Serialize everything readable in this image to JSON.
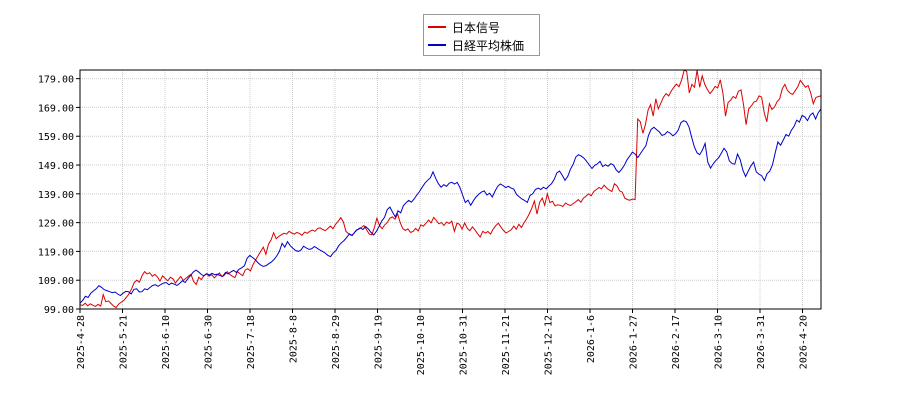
{
  "chart_data": {
    "type": "line",
    "y_ticks": [
      "99.00",
      "109.00",
      "119.00",
      "129.00",
      "139.00",
      "149.00",
      "159.00",
      "169.00",
      "179.00"
    ],
    "ylim": [
      99,
      182
    ],
    "x_ticks": [
      "2025-4-28",
      "2025-5-21",
      "2025-6-10",
      "2025-6-30",
      "2025-7-18",
      "2025-8-8",
      "2025-8-29",
      "2025-9-19",
      "2025-10-10",
      "2025-10-31",
      "2025-11-21",
      "2025-12-12",
      "2026-1-6",
      "2026-1-27",
      "2026-2-17",
      "2026-3-10",
      "2026-3-31",
      "2026-4-20"
    ],
    "grid": true,
    "legend_position": "top-center",
    "series": [
      {
        "name": "日本信号",
        "color": "#dd0000",
        "values": [
          100.5,
          100.2,
          101.0,
          100.1,
          100.8,
          100.3,
          99.9,
          100.6,
          100.0,
          104.0,
          101.5,
          101.8,
          100.9,
          100.0,
          99.5,
          100.7,
          101.4,
          102.0,
          103.1,
          104.3,
          106.0,
          108.2,
          109.0,
          108.3,
          110.5,
          112.0,
          111.2,
          111.6,
          110.4,
          111.0,
          110.1,
          108.7,
          110.5,
          109.6,
          108.8,
          110.0,
          109.5,
          108.0,
          109.2,
          110.3,
          108.9,
          109.7,
          110.4,
          111.0,
          108.6,
          107.5,
          110.0,
          109.2,
          110.6,
          111.2,
          110.4,
          110.9,
          109.8,
          110.7,
          111.5,
          110.2,
          110.8,
          112.0,
          111.0,
          110.4,
          109.9,
          112.0,
          111.2,
          110.6,
          112.5,
          113.0,
          112.2,
          114.4,
          116.0,
          117.5,
          119.0,
          120.5,
          118.0,
          121.5,
          123.0,
          125.5,
          123.4,
          124.2,
          124.8,
          125.3,
          125.0,
          126.0,
          125.4,
          125.0,
          125.6,
          125.2,
          124.6,
          125.7,
          125.3,
          126.0,
          126.4,
          126.0,
          126.9,
          127.2,
          126.6,
          126.2,
          127.0,
          127.8,
          126.9,
          128.4,
          129.5,
          130.7,
          129.2,
          126.0,
          125.2,
          124.6,
          125.1,
          126.4,
          126.7,
          127.3,
          128.0,
          126.5,
          125.0,
          124.8,
          127.2,
          130.5,
          128.0,
          126.9,
          128.2,
          129.0,
          130.5,
          131.0,
          130.2,
          132.0,
          129.0,
          127.0,
          126.3,
          126.8,
          125.6,
          125.9,
          127.0,
          126.1,
          128.2,
          127.8,
          128.8,
          129.9,
          128.9,
          130.8,
          129.7,
          128.6,
          129.0,
          128.0,
          129.2,
          128.7,
          129.5,
          126.0,
          128.8,
          128.4,
          126.7,
          128.9,
          127.0,
          126.2,
          127.5,
          126.4,
          125.1,
          124.0,
          126.0,
          125.4,
          125.9,
          125.0,
          126.7,
          127.9,
          128.8,
          127.5,
          126.3,
          125.4,
          125.9,
          126.5,
          127.8,
          126.7,
          128.4,
          127.3,
          129.0,
          130.4,
          132.0,
          134.0,
          136.5,
          132.0,
          136.0,
          137.5,
          135.0,
          139.0,
          136.0,
          136.4,
          134.8,
          135.2,
          135.0,
          134.6,
          135.8,
          135.3,
          134.9,
          135.6,
          136.2,
          137.0,
          136.1,
          137.5,
          138.2,
          139.0,
          138.3,
          139.8,
          140.5,
          141.2,
          140.7,
          142.0,
          141.0,
          140.3,
          139.8,
          142.5,
          141.8,
          140.0,
          139.6,
          137.5,
          137.0,
          136.8,
          137.2,
          137.0,
          165.0,
          164.0,
          160.0,
          163.0,
          168.0,
          170.0,
          166.0,
          172.0,
          168.5,
          170.5,
          172.6,
          173.8,
          173.0,
          174.7,
          176.0,
          177.1,
          176.2,
          178.5,
          182.0,
          181.5,
          174.0,
          177.0,
          176.0,
          182.0,
          176.0,
          180.0,
          177.0,
          175.2,
          173.8,
          174.9,
          176.3,
          175.8,
          178.6,
          174.0,
          166.0,
          170.7,
          171.5,
          172.8,
          172.2,
          174.6,
          175.1,
          170.0,
          163.0,
          168.5,
          169.5,
          170.9,
          171.2,
          173.0,
          172.6,
          167.2,
          164.0,
          170.3,
          168.3,
          169.1,
          171.0,
          172.0,
          175.5,
          177.0,
          174.9,
          174.0,
          173.5,
          174.8,
          176.2,
          178.4,
          177.2,
          176.0,
          176.6,
          174.0,
          170.3,
          172.4,
          172.8,
          173.0
        ]
      },
      {
        "name": "日経平均株価",
        "color": "#0000cc",
        "values": [
          101.0,
          102.0,
          103.4,
          103.0,
          104.5,
          105.3,
          106.0,
          107.1,
          106.5,
          105.7,
          105.4,
          105.0,
          104.7,
          104.9,
          104.2,
          103.7,
          104.5,
          105.1,
          105.0,
          104.2,
          105.8,
          106.0,
          104.9,
          105.0,
          106.0,
          105.7,
          106.5,
          107.2,
          107.4,
          106.9,
          107.5,
          108.0,
          108.2,
          107.4,
          108.0,
          107.6,
          107.2,
          107.9,
          108.8,
          108.2,
          109.5,
          110.6,
          111.8,
          112.5,
          111.9,
          111.0,
          110.5,
          111.3,
          110.8,
          111.4,
          110.9,
          111.1,
          110.6,
          110.4,
          111.7,
          111.2,
          111.9,
          112.4,
          111.7,
          112.8,
          113.3,
          114.0,
          116.6,
          117.6,
          116.9,
          116.2,
          115.1,
          114.3,
          113.8,
          114.0,
          114.7,
          115.3,
          116.2,
          117.4,
          119.0,
          121.8,
          120.5,
          122.4,
          121.0,
          120.1,
          119.3,
          119.0,
          119.5,
          120.8,
          120.2,
          119.7,
          119.9,
          120.7,
          120.1,
          119.5,
          119.0,
          118.4,
          117.6,
          117.2,
          118.5,
          119.3,
          121.0,
          122.0,
          122.8,
          123.9,
          125.1,
          124.5,
          125.7,
          126.6,
          127.2,
          126.6,
          127.6,
          126.8,
          125.6,
          124.7,
          126.0,
          127.7,
          129.6,
          130.8,
          133.5,
          134.4,
          132.6,
          131.0,
          133.1,
          132.4,
          134.8,
          135.9,
          136.7,
          136.1,
          137.2,
          138.6,
          139.8,
          141.3,
          142.7,
          143.7,
          144.5,
          146.6,
          144.4,
          142.5,
          141.3,
          142.2,
          141.6,
          142.7,
          143.0,
          142.4,
          143.0,
          141.2,
          138.6,
          136.0,
          136.8,
          135.0,
          136.6,
          137.9,
          138.9,
          139.6,
          140.0,
          138.6,
          139.2,
          137.9,
          139.9,
          141.6,
          142.4,
          141.9,
          141.2,
          141.6,
          141.0,
          140.6,
          138.8,
          138.0,
          137.2,
          136.7,
          136.0,
          138.4,
          139.0,
          140.5,
          141.0,
          140.5,
          141.3,
          140.7,
          141.7,
          142.5,
          144.0,
          146.3,
          146.9,
          145.4,
          143.7,
          145.0,
          147.5,
          149.2,
          151.8,
          152.6,
          152.1,
          151.4,
          150.3,
          149.0,
          147.8,
          148.9,
          149.4,
          150.3,
          148.5,
          149.1,
          148.6,
          149.5,
          149.0,
          147.3,
          146.4,
          147.5,
          148.9,
          150.8,
          152.1,
          153.5,
          152.8,
          151.6,
          153.0,
          154.4,
          155.7,
          159.3,
          161.4,
          162.1,
          161.3,
          160.5,
          159.3,
          159.6,
          160.6,
          160.1,
          159.2,
          159.8,
          161.1,
          163.7,
          164.4,
          164.0,
          162.2,
          158.6,
          155.3,
          153.2,
          152.6,
          154.2,
          156.5,
          150.0,
          147.9,
          149.4,
          150.6,
          151.5,
          153.1,
          154.8,
          153.6,
          150.4,
          149.5,
          149.3,
          152.8,
          150.9,
          147.2,
          145.0,
          146.9,
          148.7,
          150.0,
          146.6,
          145.8,
          145.3,
          143.6,
          146.0,
          146.9,
          149.1,
          153.2,
          157.0,
          155.9,
          157.7,
          159.6,
          159.0,
          161.1,
          162.4,
          164.6,
          163.9,
          166.2,
          165.7,
          164.4,
          166.3,
          167.1,
          165.0,
          167.2,
          168.5
        ]
      }
    ]
  }
}
